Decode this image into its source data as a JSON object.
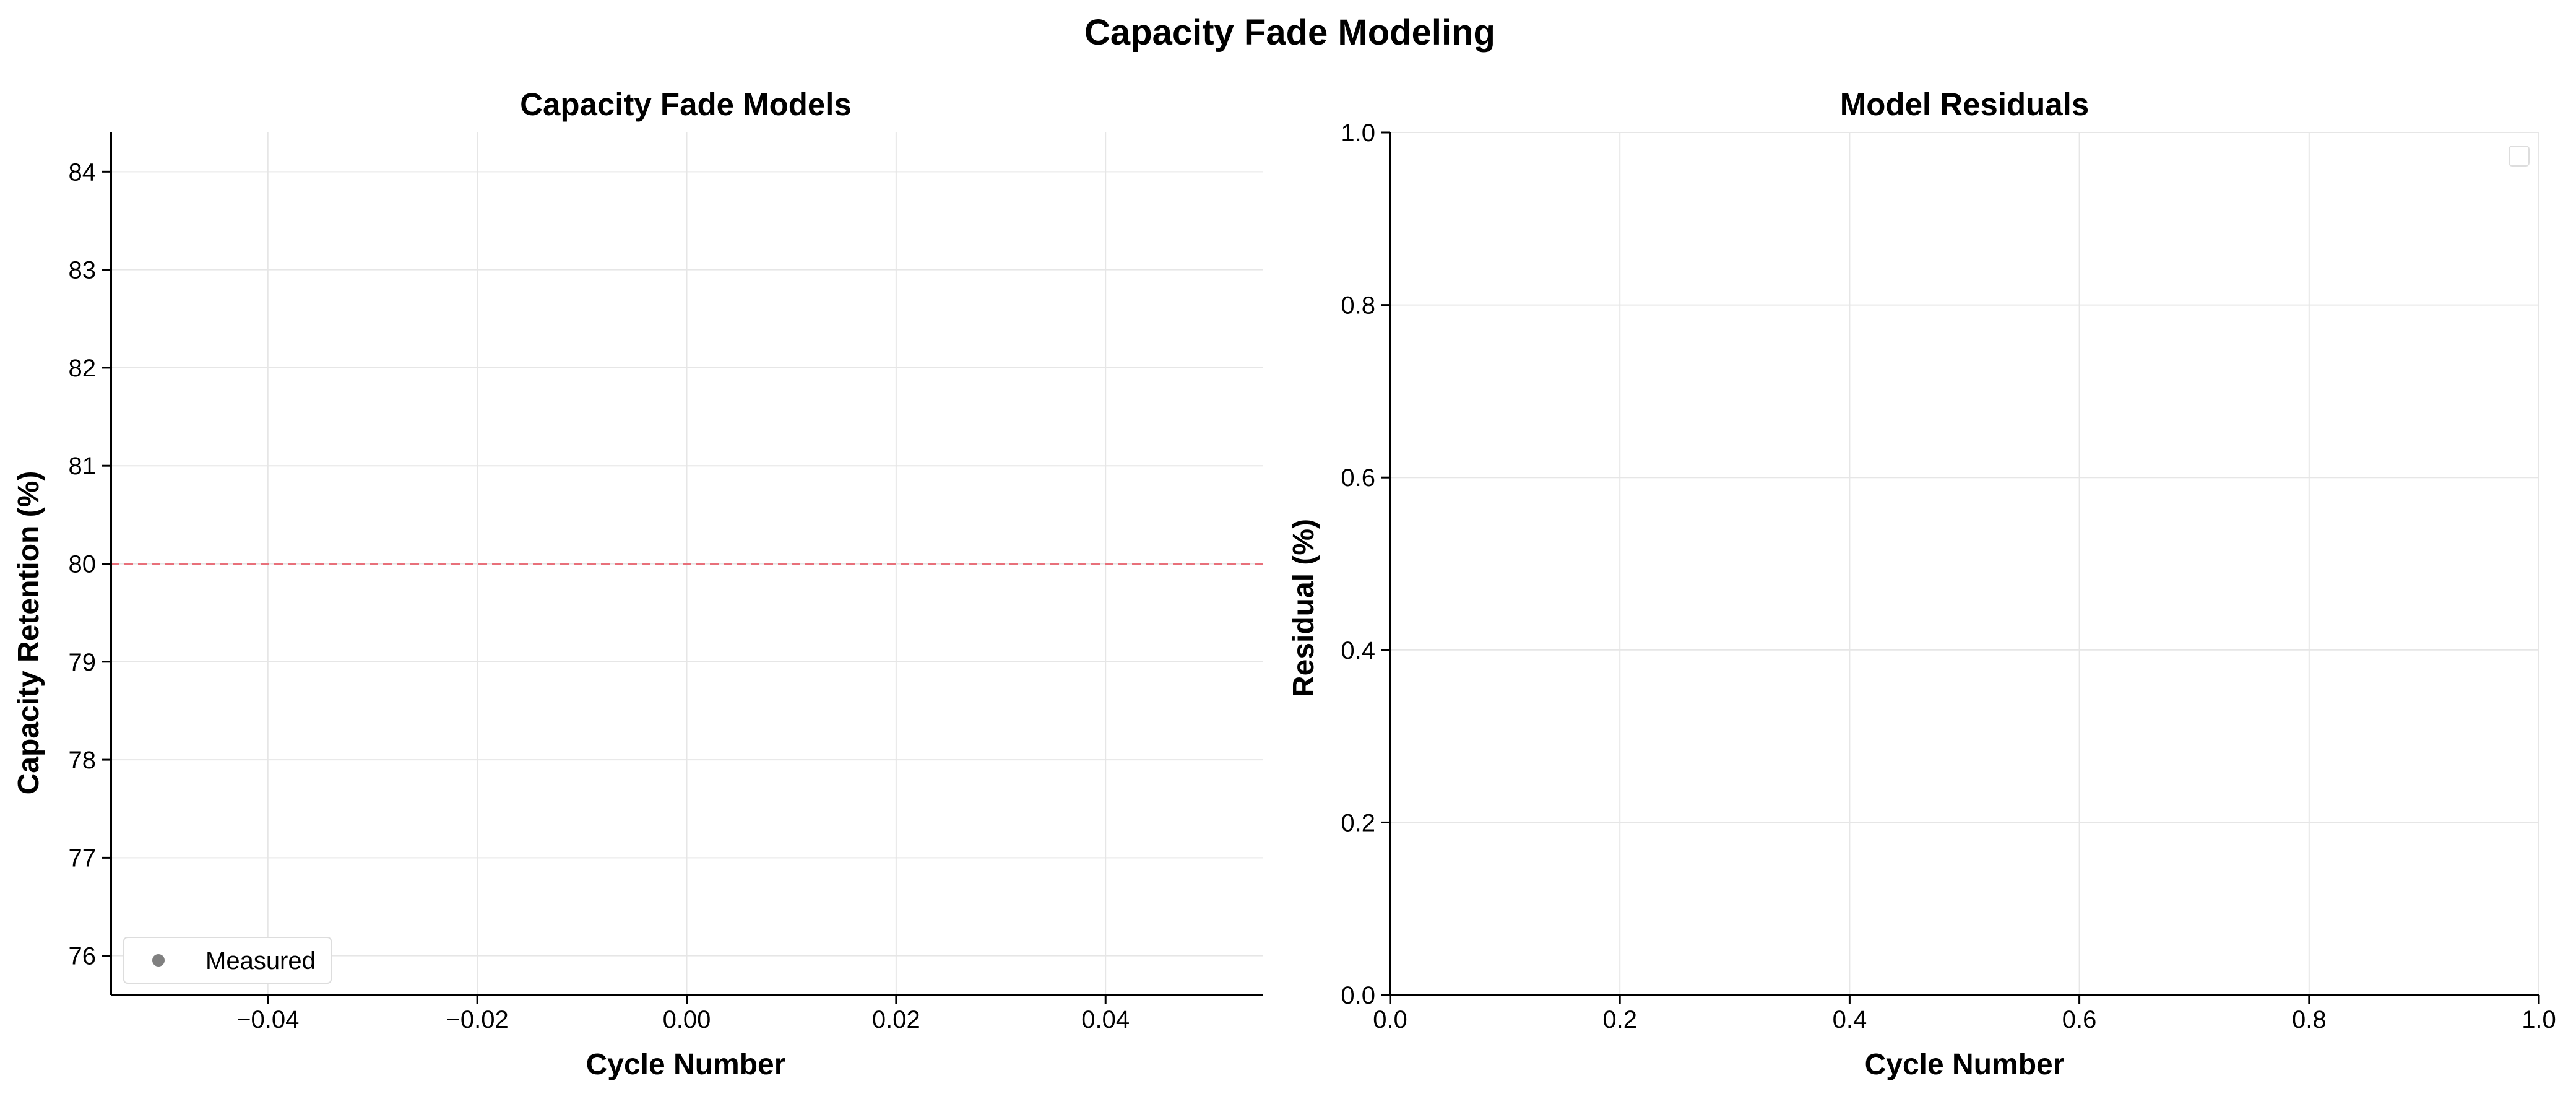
{
  "figure": {
    "title": "Capacity Fade Modeling"
  },
  "chart_data": [
    {
      "type": "line",
      "title": "Capacity Fade Models",
      "xlabel": "Cycle Number",
      "ylabel": "Capacity Retention (%)",
      "xlim": [
        -0.055,
        0.055
      ],
      "ylim": [
        75.6,
        84.4
      ],
      "xticks": [
        -0.04,
        -0.02,
        0.0,
        0.02,
        0.04
      ],
      "xtick_labels": [
        "−0.04",
        "−0.02",
        "0.00",
        "0.02",
        "0.04"
      ],
      "yticks": [
        76,
        77,
        78,
        79,
        80,
        81,
        82,
        83,
        84
      ],
      "ytick_labels": [
        "76",
        "77",
        "78",
        "79",
        "80",
        "81",
        "82",
        "83",
        "84"
      ],
      "grid": true,
      "series": [
        {
          "name": "Measured",
          "kind": "scatter",
          "x": [],
          "y": [],
          "color": "#808080"
        }
      ],
      "reference_lines": [
        {
          "orientation": "horizontal",
          "y": 80,
          "style": "dashed",
          "color": "#e8707a"
        }
      ],
      "legend": {
        "placement": "lower-left",
        "entries": [
          "Measured"
        ]
      }
    },
    {
      "type": "line",
      "title": "Model Residuals",
      "xlabel": "Cycle Number",
      "ylabel": "Residual (%)",
      "xlim": [
        0.0,
        1.0
      ],
      "ylim": [
        0.0,
        1.0
      ],
      "xticks": [
        0.0,
        0.2,
        0.4,
        0.6,
        0.8,
        1.0
      ],
      "xtick_labels": [
        "0.0",
        "0.2",
        "0.4",
        "0.6",
        "0.8",
        "1.0"
      ],
      "yticks": [
        0.0,
        0.2,
        0.4,
        0.6,
        0.8,
        1.0
      ],
      "ytick_labels": [
        "0.0",
        "0.2",
        "0.4",
        "0.6",
        "0.8",
        "1.0"
      ],
      "grid": true,
      "series": [],
      "legend": {
        "placement": "upper-right",
        "entries": []
      }
    }
  ]
}
